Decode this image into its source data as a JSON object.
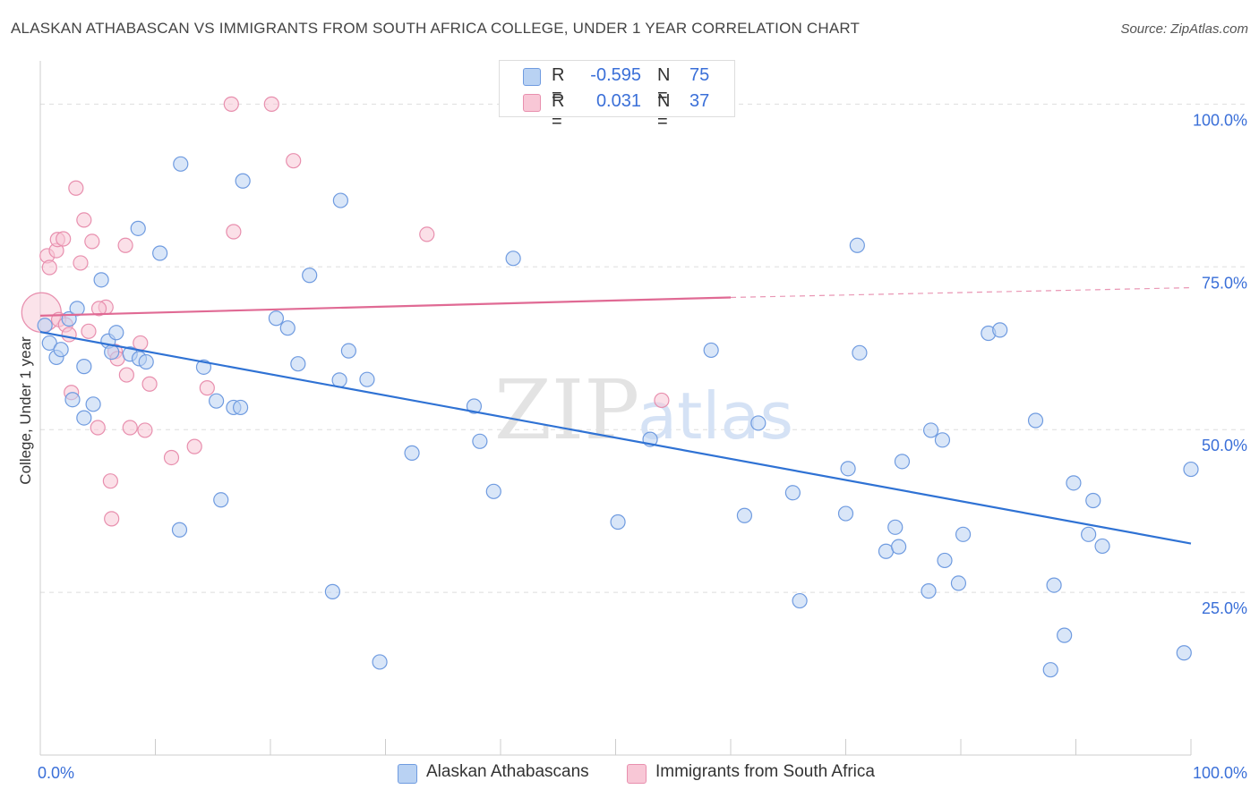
{
  "title": "ALASKAN ATHABASCAN VS IMMIGRANTS FROM SOUTH AFRICA COLLEGE, UNDER 1 YEAR CORRELATION CHART",
  "source": "Source: ZipAtlas.com",
  "watermark": {
    "zip": "ZIP",
    "atlas": "atlas"
  },
  "colors": {
    "blue_fill": "#b9d2f3",
    "blue_stroke": "#6f9be0",
    "blue_line": "#2f72d4",
    "pink_fill": "#f8c7d6",
    "pink_stroke": "#e88fae",
    "pink_line": "#e06a94",
    "axis_label": "#3a6fd8",
    "grid": "#dddddd"
  },
  "legend": {
    "r_label": "R =",
    "n_label": "N =",
    "entries": [
      {
        "r": "-0.595",
        "n": "75"
      },
      {
        "r": "0.031",
        "n": "37"
      }
    ]
  },
  "chart_data": {
    "type": "scatter",
    "xlabel": "",
    "ylabel": "College, Under 1 year",
    "xlim": [
      0,
      100
    ],
    "ylim": [
      0,
      105
    ],
    "x_tick_labels": [
      "0.0%",
      "100.0%"
    ],
    "y_ticks": [
      25,
      50,
      75,
      100
    ],
    "y_tick_labels": [
      "25.0%",
      "50.0%",
      "75.0%",
      "100.0%"
    ],
    "grid": true,
    "legend_position": "bottom",
    "series": [
      {
        "name": "Alaskan Athabascans",
        "color": "#6f9be0",
        "trend": {
          "x0": 0,
          "y0": 65.0,
          "x1": 100,
          "y1": 32.5
        },
        "points": [
          [
            0.4,
            66
          ],
          [
            0.8,
            63.3
          ],
          [
            1.4,
            61.1
          ],
          [
            1.8,
            62.3
          ],
          [
            2.5,
            67
          ],
          [
            3.2,
            68.6
          ],
          [
            2.8,
            54.6
          ],
          [
            3.8,
            59.7
          ],
          [
            3.8,
            51.8
          ],
          [
            4.6,
            53.9
          ],
          [
            5.3,
            73
          ],
          [
            5.9,
            63.6
          ],
          [
            6.2,
            61.9
          ],
          [
            6.6,
            64.9
          ],
          [
            7.8,
            61.6
          ],
          [
            8.6,
            60.9
          ],
          [
            9.2,
            60.4
          ],
          [
            8.5,
            80.9
          ],
          [
            10.4,
            77.1
          ],
          [
            12.2,
            90.8
          ],
          [
            12.1,
            34.6
          ],
          [
            14.2,
            59.6
          ],
          [
            15.3,
            54.4
          ],
          [
            15.7,
            39.2
          ],
          [
            16.8,
            53.4
          ],
          [
            17.4,
            53.4
          ],
          [
            17.6,
            88.2
          ],
          [
            20.5,
            67.1
          ],
          [
            21.5,
            65.6
          ],
          [
            22.4,
            60.1
          ],
          [
            23.4,
            73.7
          ],
          [
            26,
            57.6
          ],
          [
            26.1,
            85.2
          ],
          [
            26.8,
            62.1
          ],
          [
            28.4,
            57.7
          ],
          [
            25.4,
            25.1
          ],
          [
            29.5,
            14.3
          ],
          [
            32.3,
            46.4
          ],
          [
            37.7,
            53.6
          ],
          [
            38.2,
            48.2
          ],
          [
            39.4,
            40.5
          ],
          [
            41.1,
            76.3
          ],
          [
            50.2,
            35.8
          ],
          [
            53,
            48.5
          ],
          [
            58.3,
            62.2
          ],
          [
            61.2,
            36.8
          ],
          [
            62.4,
            51
          ],
          [
            65.4,
            40.3
          ],
          [
            66,
            23.7
          ],
          [
            70.2,
            44
          ],
          [
            70,
            37.1
          ],
          [
            71.2,
            61.8
          ],
          [
            71,
            78.3
          ],
          [
            73.5,
            31.3
          ],
          [
            74.3,
            35
          ],
          [
            74.6,
            32
          ],
          [
            74.9,
            45.1
          ],
          [
            77.2,
            25.2
          ],
          [
            77.4,
            49.9
          ],
          [
            78.6,
            29.9
          ],
          [
            78.4,
            48.4
          ],
          [
            79.8,
            26.4
          ],
          [
            80.2,
            33.9
          ],
          [
            82.4,
            64.8
          ],
          [
            83.4,
            65.3
          ],
          [
            86.5,
            51.4
          ],
          [
            87.8,
            13.1
          ],
          [
            88.1,
            26.1
          ],
          [
            89,
            18.4
          ],
          [
            89.8,
            41.8
          ],
          [
            91.1,
            33.9
          ],
          [
            91.5,
            39.1
          ],
          [
            92.3,
            32.1
          ],
          [
            99.4,
            15.7
          ],
          [
            100,
            43.9
          ]
        ]
      },
      {
        "name": "Immigrants from South Africa",
        "color": "#e88fae",
        "trend": {
          "x0": 0,
          "y0": 67.5,
          "x1": 60,
          "y1": 70.3,
          "x2": 100,
          "y2": 71.8
        },
        "points": [
          [
            0.1,
            68
          ],
          [
            0.6,
            76.7
          ],
          [
            0.8,
            74.9
          ],
          [
            1.4,
            77.5
          ],
          [
            1.5,
            79.2
          ],
          [
            1.6,
            66.9
          ],
          [
            2,
            79.3
          ],
          [
            2.2,
            66.1
          ],
          [
            2.5,
            64.6
          ],
          [
            2.7,
            55.7
          ],
          [
            3.1,
            87.1
          ],
          [
            3.5,
            75.6
          ],
          [
            3.8,
            82.2
          ],
          [
            4.2,
            65.1
          ],
          [
            4.5,
            78.9
          ],
          [
            5,
            50.3
          ],
          [
            5.7,
            68.8
          ],
          [
            6.1,
            42.1
          ],
          [
            6.2,
            36.3
          ],
          [
            6.5,
            62
          ],
          [
            6.7,
            60.9
          ],
          [
            7.4,
            78.3
          ],
          [
            7.5,
            58.4
          ],
          [
            7.8,
            50.3
          ],
          [
            8.7,
            63.3
          ],
          [
            9.1,
            49.9
          ],
          [
            9.5,
            57
          ],
          [
            11.4,
            45.7
          ],
          [
            13.4,
            47.4
          ],
          [
            14.5,
            56.4
          ],
          [
            16.8,
            80.4
          ],
          [
            16.6,
            100
          ],
          [
            20.1,
            100
          ],
          [
            22,
            91.3
          ],
          [
            33.6,
            80
          ],
          [
            54,
            54.5
          ],
          [
            5.1,
            68.6
          ]
        ]
      }
    ]
  }
}
